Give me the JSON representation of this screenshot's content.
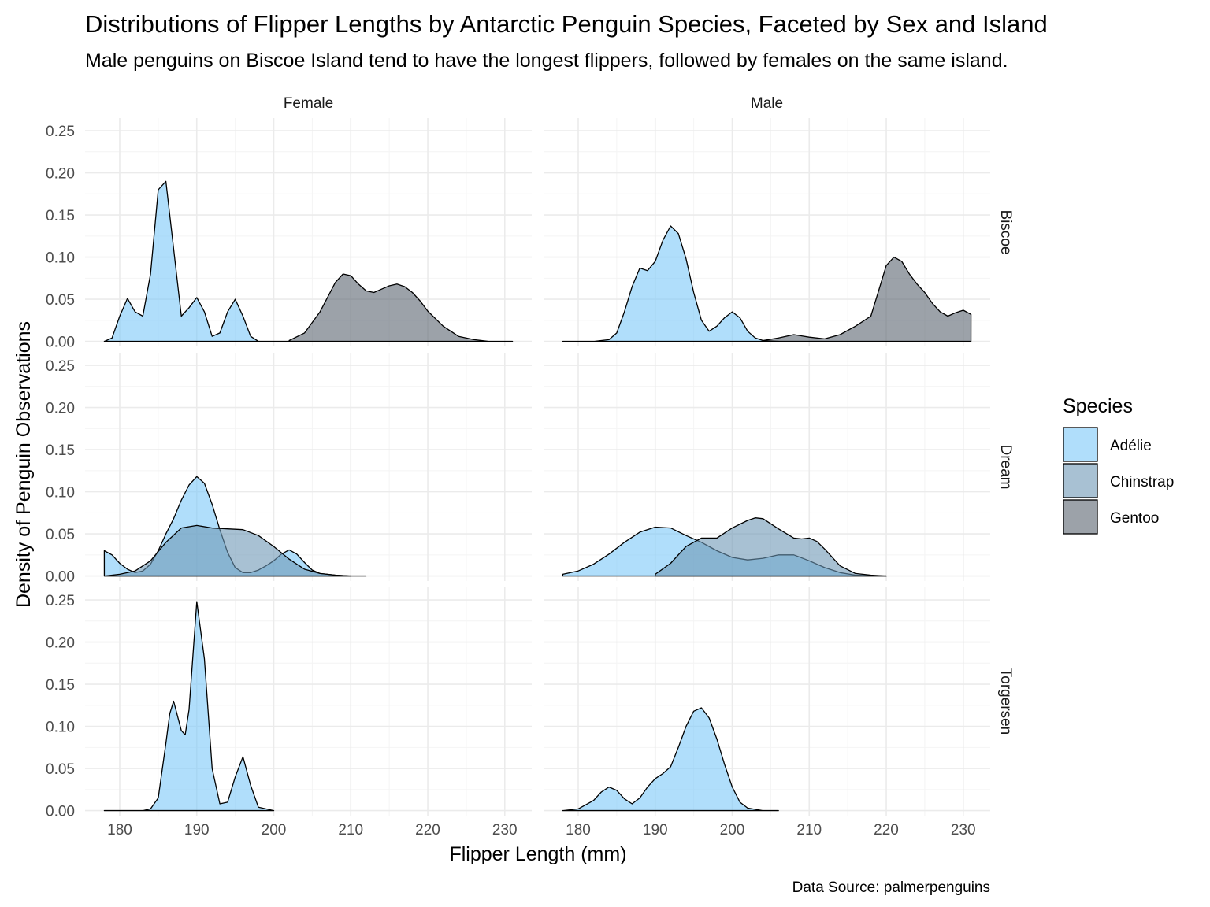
{
  "chart_data": {
    "type": "area",
    "subtype": "density",
    "title": "Distributions of Flipper Lengths by Antarctic Penguin Species, Faceted by Sex and Island",
    "subtitle": "Male penguins on Biscoe Island tend to have the longest flippers, followed by females on the same island.",
    "xlabel": "Flipper Length (mm)",
    "ylabel": "Density of Penguin Observations",
    "caption": "Data Source: palmerpenguins",
    "xlim": [
      175.5,
      233.5
    ],
    "ylim": [
      -0.006,
      0.265
    ],
    "x_ticks": [
      180,
      190,
      200,
      210,
      220,
      230
    ],
    "y_ticks": [
      0.0,
      0.05,
      0.1,
      0.15,
      0.2,
      0.25
    ],
    "y_tick_labels": [
      "0.00",
      "0.05",
      "0.10",
      "0.15",
      "0.20",
      "0.25"
    ],
    "grid": true,
    "facet_cols": [
      "Female",
      "Male"
    ],
    "facet_rows": [
      "Biscoe",
      "Dream",
      "Torgersen"
    ],
    "legend": {
      "title": "Species",
      "position": "right",
      "items": [
        {
          "label": "Adélie",
          "color": "#7cc8f8"
        },
        {
          "label": "Chinstrap",
          "color": "#6e98b6"
        },
        {
          "label": "Gentoo",
          "color": "#5a6470"
        }
      ]
    },
    "panels": [
      {
        "sex": "Female",
        "island": "Biscoe",
        "series": [
          {
            "species": "Gentoo",
            "x": [
              202,
              204,
              206,
              208,
              209,
              210,
              211,
              212,
              213,
              214,
              215,
              216,
              217,
              218,
              219,
              220,
              222,
              224,
              226,
              228,
              231
            ],
            "y": [
              0.001,
              0.01,
              0.035,
              0.07,
              0.08,
              0.078,
              0.068,
              0.06,
              0.058,
              0.062,
              0.066,
              0.068,
              0.065,
              0.058,
              0.048,
              0.036,
              0.018,
              0.006,
              0.002,
              0.0,
              0.0
            ]
          },
          {
            "species": "Adélie",
            "x": [
              178,
              179,
              180,
              181,
              182,
              183,
              184,
              185,
              186,
              187,
              188,
              189,
              190,
              191,
              192,
              193,
              194,
              195,
              196,
              197,
              198,
              199,
              200,
              202
            ],
            "y": [
              0.0,
              0.004,
              0.03,
              0.051,
              0.035,
              0.03,
              0.08,
              0.18,
              0.19,
              0.11,
              0.03,
              0.04,
              0.052,
              0.035,
              0.006,
              0.01,
              0.035,
              0.05,
              0.03,
              0.006,
              0.0,
              0.0,
              0.0,
              0.0
            ]
          }
        ]
      },
      {
        "sex": "Male",
        "island": "Biscoe",
        "series": [
          {
            "species": "Gentoo",
            "x": [
              204,
              206,
              208,
              210,
              212,
              214,
              216,
              218,
              219,
              220,
              221,
              222,
              223,
              224,
              225,
              226,
              227,
              228,
              229,
              230,
              231
            ],
            "y": [
              0.001,
              0.004,
              0.008,
              0.005,
              0.003,
              0.008,
              0.018,
              0.03,
              0.06,
              0.09,
              0.1,
              0.095,
              0.08,
              0.068,
              0.058,
              0.045,
              0.035,
              0.03,
              0.034,
              0.037,
              0.032
            ]
          },
          {
            "species": "Adélie",
            "x": [
              178,
              182,
              184,
              185,
              186,
              187,
              188,
              189,
              190,
              191,
              192,
              193,
              194,
              195,
              196,
              197,
              198,
              199,
              200,
              201,
              202,
              203,
              204,
              206
            ],
            "y": [
              0.0,
              0.0,
              0.002,
              0.01,
              0.035,
              0.065,
              0.087,
              0.084,
              0.095,
              0.12,
              0.137,
              0.128,
              0.098,
              0.058,
              0.025,
              0.012,
              0.018,
              0.028,
              0.035,
              0.028,
              0.012,
              0.004,
              0.001,
              0.0
            ]
          }
        ]
      },
      {
        "sex": "Female",
        "island": "Dream",
        "series": [
          {
            "species": "Adélie",
            "x": [
              178,
              179,
              180,
              181,
              182,
              183,
              184,
              185,
              186,
              187,
              188,
              189,
              190,
              191,
              192,
              193,
              194,
              195,
              196,
              197,
              198,
              199,
              200,
              201,
              202,
              203,
              204,
              205,
              206,
              208,
              210
            ],
            "y": [
              0.03,
              0.025,
              0.015,
              0.008,
              0.004,
              0.006,
              0.014,
              0.03,
              0.05,
              0.068,
              0.09,
              0.108,
              0.118,
              0.11,
              0.085,
              0.055,
              0.028,
              0.01,
              0.004,
              0.004,
              0.007,
              0.012,
              0.018,
              0.026,
              0.031,
              0.026,
              0.016,
              0.007,
              0.003,
              0.001,
              0.0
            ]
          },
          {
            "species": "Chinstrap",
            "x": [
              178,
              180,
              182,
              184,
              186,
              188,
              190,
              192,
              194,
              196,
              198,
              200,
              202,
              204,
              206,
              208,
              210,
              212
            ],
            "y": [
              0.0,
              0.002,
              0.006,
              0.018,
              0.04,
              0.057,
              0.06,
              0.057,
              0.056,
              0.055,
              0.048,
              0.035,
              0.02,
              0.008,
              0.003,
              0.001,
              0.0,
              0.0
            ]
          }
        ]
      },
      {
        "sex": "Male",
        "island": "Dream",
        "series": [
          {
            "species": "Adélie",
            "x": [
              178,
              180,
              182,
              184,
              186,
              188,
              190,
              192,
              194,
              196,
              198,
              200,
              202,
              204,
              206,
              208,
              210,
              212,
              214,
              216,
              220
            ],
            "y": [
              0.002,
              0.006,
              0.014,
              0.026,
              0.04,
              0.052,
              0.058,
              0.057,
              0.048,
              0.04,
              0.03,
              0.022,
              0.019,
              0.021,
              0.025,
              0.025,
              0.018,
              0.01,
              0.004,
              0.001,
              0.0
            ]
          },
          {
            "species": "Chinstrap",
            "x": [
              190,
              192,
              194,
              196,
              198,
              200,
              202,
              203,
              204,
              206,
              208,
              209,
              210,
              211,
              212,
              214,
              216,
              218,
              220
            ],
            "y": [
              0.002,
              0.015,
              0.035,
              0.045,
              0.045,
              0.057,
              0.066,
              0.069,
              0.068,
              0.056,
              0.045,
              0.044,
              0.045,
              0.041,
              0.032,
              0.012,
              0.003,
              0.001,
              0.0
            ]
          }
        ]
      },
      {
        "sex": "Female",
        "island": "Torgersen",
        "series": [
          {
            "species": "Adélie",
            "x": [
              178,
              183,
              184,
              185,
              186,
              186.5,
              187,
              188,
              188.5,
              189,
              190,
              191,
              192,
              193,
              194,
              195,
              196,
              197,
              198,
              200
            ],
            "y": [
              0.0,
              0.0,
              0.002,
              0.015,
              0.08,
              0.115,
              0.13,
              0.095,
              0.09,
              0.12,
              0.248,
              0.18,
              0.05,
              0.008,
              0.01,
              0.04,
              0.064,
              0.03,
              0.004,
              0.0
            ]
          }
        ]
      },
      {
        "sex": "Male",
        "island": "Torgersen",
        "series": [
          {
            "species": "Adélie",
            "x": [
              178,
              180,
              182,
              183,
              184,
              185,
              186,
              187,
              188,
              189,
              190,
              191,
              192,
              193,
              194,
              195,
              196,
              197,
              198,
              199,
              200,
              201,
              202,
              204,
              206
            ],
            "y": [
              0.0,
              0.002,
              0.012,
              0.022,
              0.028,
              0.024,
              0.014,
              0.008,
              0.015,
              0.028,
              0.038,
              0.044,
              0.052,
              0.075,
              0.1,
              0.118,
              0.122,
              0.11,
              0.085,
              0.055,
              0.028,
              0.01,
              0.003,
              0.0,
              0.0
            ]
          }
        ]
      }
    ]
  }
}
